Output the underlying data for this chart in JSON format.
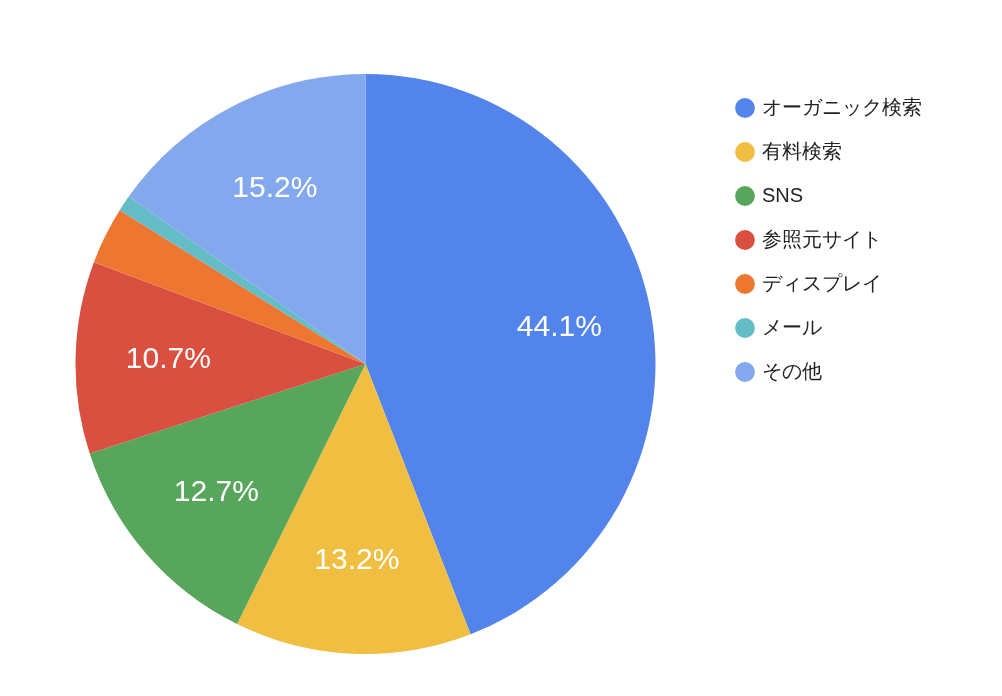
{
  "chart_data": {
    "type": "pie",
    "categories": [
      "オーガニック検索",
      "有料検索",
      "SNS",
      "参照元サイト",
      "ディスプレイ",
      "メール",
      "その他"
    ],
    "values": [
      44.1,
      13.2,
      12.7,
      10.7,
      3.2,
      0.9,
      15.2
    ],
    "colors": [
      "#5384ec",
      "#f0be41",
      "#58a65c",
      "#d95040",
      "#ed7631",
      "#64bcc6",
      "#84a8ee"
    ],
    "value_labels": [
      "44.1%",
      "13.2%",
      "12.7%",
      "10.7%",
      null,
      null,
      "15.2%"
    ],
    "legend": "top right"
  }
}
